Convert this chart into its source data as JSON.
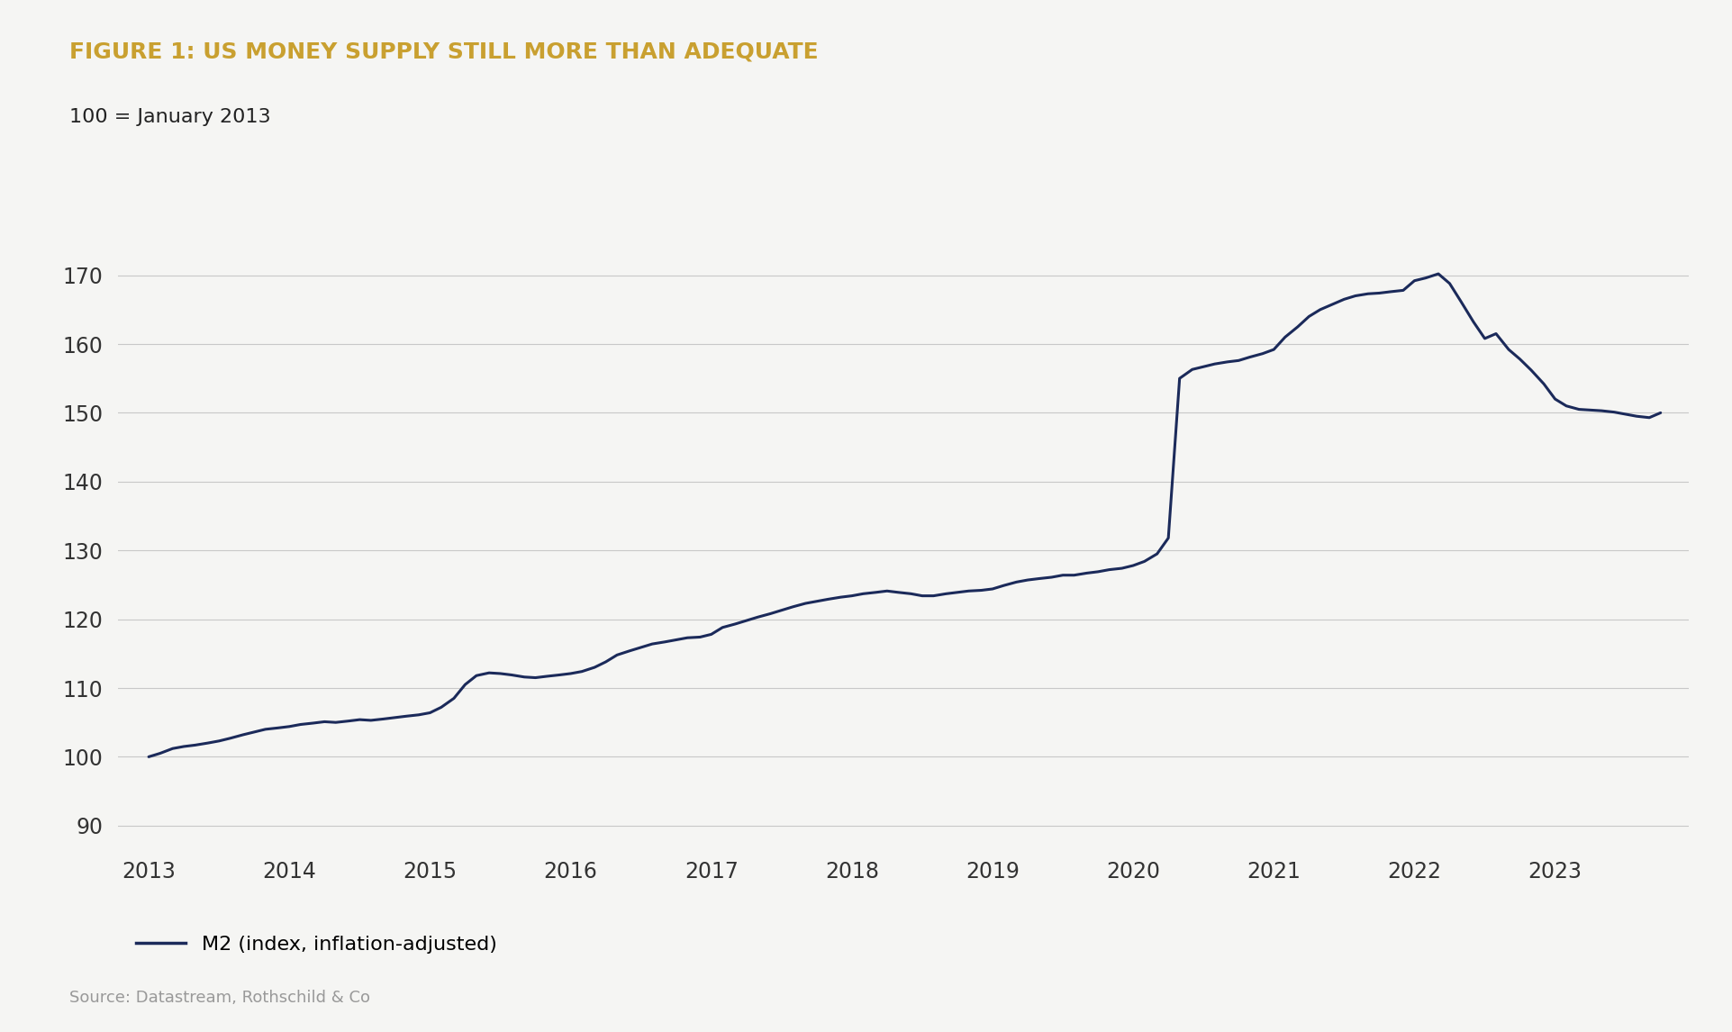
{
  "title": "FIGURE 1: US MONEY SUPPLY STILL MORE THAN ADEQUATE",
  "subtitle": "100 = January 2013",
  "source": "Source: Datastream, Rothschild & Co",
  "legend_label": "M2 (index, inflation-adjusted)",
  "title_color": "#C9A030",
  "line_color": "#1B2A5A",
  "background_color": "#F5F5F3",
  "plot_bg_color": "#F5F5F3",
  "ylim": [
    87,
    177
  ],
  "yticks": [
    90,
    100,
    110,
    120,
    130,
    140,
    150,
    160,
    170
  ],
  "x_labels": [
    "2013",
    "2014",
    "2015",
    "2016",
    "2017",
    "2018",
    "2019",
    "2020",
    "2021",
    "2022",
    "2023"
  ],
  "data": {
    "dates": [
      2013.0,
      2013.08,
      2013.17,
      2013.25,
      2013.33,
      2013.42,
      2013.5,
      2013.58,
      2013.67,
      2013.75,
      2013.83,
      2013.92,
      2014.0,
      2014.08,
      2014.17,
      2014.25,
      2014.33,
      2014.42,
      2014.5,
      2014.58,
      2014.67,
      2014.75,
      2014.83,
      2014.92,
      2015.0,
      2015.08,
      2015.17,
      2015.25,
      2015.33,
      2015.42,
      2015.5,
      2015.58,
      2015.67,
      2015.75,
      2015.83,
      2015.92,
      2016.0,
      2016.08,
      2016.17,
      2016.25,
      2016.33,
      2016.42,
      2016.5,
      2016.58,
      2016.67,
      2016.75,
      2016.83,
      2016.92,
      2017.0,
      2017.08,
      2017.17,
      2017.25,
      2017.33,
      2017.42,
      2017.5,
      2017.58,
      2017.67,
      2017.75,
      2017.83,
      2017.92,
      2018.0,
      2018.08,
      2018.17,
      2018.25,
      2018.33,
      2018.42,
      2018.5,
      2018.58,
      2018.67,
      2018.75,
      2018.83,
      2018.92,
      2019.0,
      2019.08,
      2019.17,
      2019.25,
      2019.33,
      2019.42,
      2019.5,
      2019.58,
      2019.67,
      2019.75,
      2019.83,
      2019.92,
      2020.0,
      2020.08,
      2020.17,
      2020.25,
      2020.33,
      2020.42,
      2020.5,
      2020.58,
      2020.67,
      2020.75,
      2020.83,
      2020.92,
      2021.0,
      2021.08,
      2021.17,
      2021.25,
      2021.33,
      2021.42,
      2021.5,
      2021.58,
      2021.67,
      2021.75,
      2021.83,
      2021.92,
      2022.0,
      2022.08,
      2022.17,
      2022.25,
      2022.33,
      2022.42,
      2022.5,
      2022.58,
      2022.67,
      2022.75,
      2022.83,
      2022.92,
      2023.0,
      2023.08,
      2023.17,
      2023.25,
      2023.33,
      2023.42,
      2023.5,
      2023.58,
      2023.67,
      2023.75
    ],
    "values": [
      100.0,
      100.5,
      101.2,
      101.5,
      101.7,
      102.0,
      102.3,
      102.7,
      103.2,
      103.6,
      104.0,
      104.2,
      104.4,
      104.7,
      104.9,
      105.1,
      105.0,
      105.2,
      105.4,
      105.3,
      105.5,
      105.7,
      105.9,
      106.1,
      106.4,
      107.2,
      108.5,
      110.5,
      111.8,
      112.2,
      112.1,
      111.9,
      111.6,
      111.5,
      111.7,
      111.9,
      112.1,
      112.4,
      113.0,
      113.8,
      114.8,
      115.4,
      115.9,
      116.4,
      116.7,
      117.0,
      117.3,
      117.4,
      117.8,
      118.8,
      119.3,
      119.8,
      120.3,
      120.8,
      121.3,
      121.8,
      122.3,
      122.6,
      122.9,
      123.2,
      123.4,
      123.7,
      123.9,
      124.1,
      123.9,
      123.7,
      123.4,
      123.4,
      123.7,
      123.9,
      124.1,
      124.2,
      124.4,
      124.9,
      125.4,
      125.7,
      125.9,
      126.1,
      126.4,
      126.4,
      126.7,
      126.9,
      127.2,
      127.4,
      127.8,
      128.4,
      129.5,
      131.8,
      155.0,
      156.3,
      156.7,
      157.1,
      157.4,
      157.6,
      158.1,
      158.6,
      159.2,
      161.0,
      162.5,
      164.0,
      165.0,
      165.8,
      166.5,
      167.0,
      167.3,
      167.4,
      167.6,
      167.8,
      169.2,
      169.6,
      170.2,
      168.8,
      166.2,
      163.2,
      160.8,
      161.5,
      159.2,
      157.8,
      156.2,
      154.2,
      152.0,
      151.0,
      150.5,
      150.4,
      150.3,
      150.1,
      149.8,
      149.5,
      149.3,
      150.0
    ]
  }
}
